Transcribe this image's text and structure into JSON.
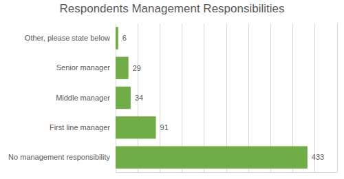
{
  "chart_data": {
    "type": "bar",
    "title": "Respondents Management Responsibilities",
    "orientation": "horizontal",
    "categories": [
      "Other, please state below",
      "Senior manager",
      "Middle manager",
      "First line manager",
      "No management responsibility"
    ],
    "values": [
      6,
      29,
      34,
      91,
      433
    ],
    "color": "#70ad47",
    "xlim": [
      0,
      500
    ],
    "xticks": [
      0,
      50,
      100,
      150,
      200,
      250,
      300,
      350,
      400,
      450,
      500
    ],
    "grid": true,
    "data_labels": true,
    "tick_labels": "y"
  }
}
